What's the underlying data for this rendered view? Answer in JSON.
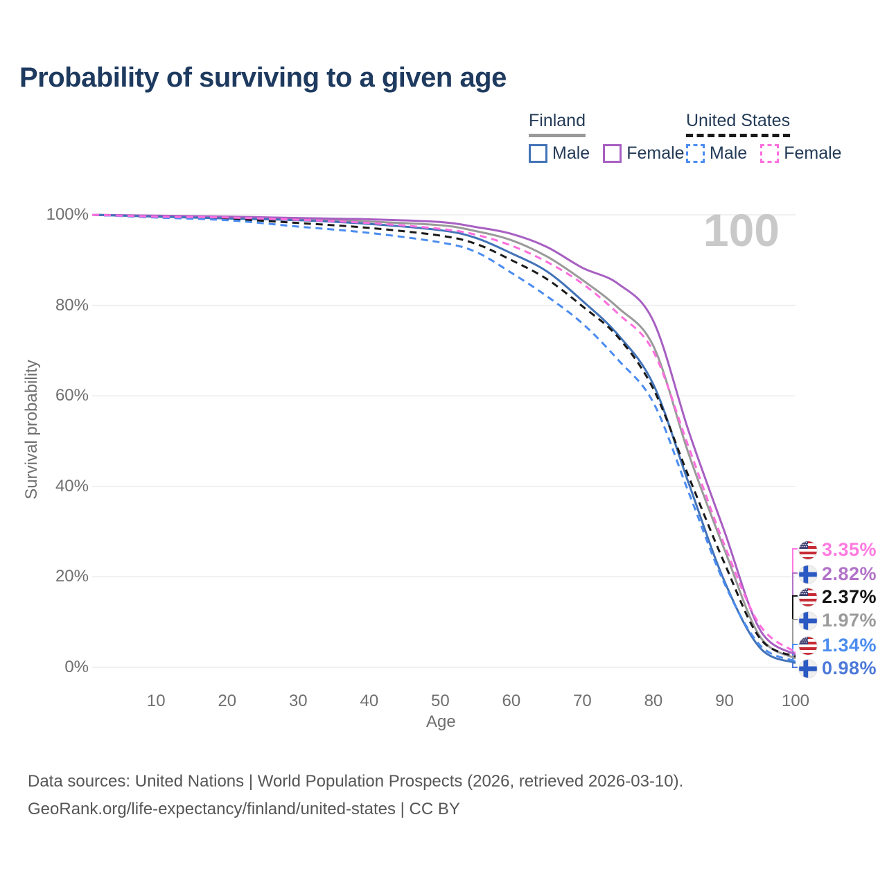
{
  "title": "Probability of surviving to a given age",
  "legend": {
    "finland": {
      "label": "Finland",
      "male": "Male",
      "female": "Female"
    },
    "united_states": {
      "label": "United States",
      "male": "Male",
      "female": "Female"
    }
  },
  "chart_data": {
    "type": "line",
    "title": "Probability of surviving to a given age",
    "xlabel": "Age",
    "ylabel": "Survival probability",
    "xlim": [
      1,
      100
    ],
    "ylim": [
      0,
      100
    ],
    "x_ticks": [
      10,
      20,
      30,
      40,
      50,
      60,
      70,
      80,
      90,
      100
    ],
    "y_tick_pcts": [
      0,
      20,
      40,
      60,
      80,
      100
    ],
    "y_tick_labels": [
      "0%",
      "20%",
      "40%",
      "60%",
      "80%",
      "100%"
    ],
    "grid": "horizontal-only",
    "age_indicator": "100",
    "ages": [
      1,
      10,
      20,
      30,
      40,
      50,
      55,
      60,
      65,
      70,
      75,
      80,
      85,
      90,
      95,
      100
    ],
    "series": [
      {
        "key": "fi_total",
        "name": "Finland (both sexes)",
        "country": "Finland",
        "flag": "fi",
        "color": "#9a9a9a",
        "dash": false,
        "values": [
          100,
          99.7,
          99.4,
          99.1,
          98.5,
          97.7,
          96.4,
          94.4,
          90.8,
          85.6,
          79.5,
          71.0,
          47.0,
          26.0,
          6.8,
          1.97
        ]
      },
      {
        "key": "fi_female",
        "name": "Finland Female",
        "country": "Finland",
        "flag": "fi",
        "color": "#a75fc2",
        "dash": false,
        "values": [
          100,
          99.8,
          99.6,
          99.3,
          99.0,
          98.4,
          97.3,
          95.8,
          92.9,
          88.3,
          84.8,
          76.5,
          52.0,
          30.0,
          8.3,
          2.82
        ]
      },
      {
        "key": "fi_male",
        "name": "Finland Male",
        "country": "Finland",
        "flag": "fi",
        "color": "#4273b8",
        "dash": false,
        "values": [
          100,
          99.6,
          99.2,
          98.8,
          98.0,
          96.6,
          94.9,
          91.5,
          87.5,
          81.0,
          73.5,
          62.5,
          40.5,
          19.0,
          4.3,
          0.98
        ]
      },
      {
        "key": "us_total",
        "name": "United States (both sexes)",
        "country": "United States",
        "flag": "us",
        "color": "#1a1a1a",
        "dash": true,
        "values": [
          100,
          99.5,
          99.1,
          98.2,
          97.1,
          95.4,
          93.6,
          90.0,
          85.8,
          79.8,
          73.0,
          61.5,
          42.0,
          23.0,
          6.4,
          2.37
        ]
      },
      {
        "key": "us_male",
        "name": "United States Male",
        "country": "United States",
        "flag": "us",
        "color": "#4b8cf0",
        "dash": true,
        "values": [
          100,
          99.4,
          98.8,
          97.4,
          96.0,
          93.9,
          91.8,
          87.2,
          82.0,
          76.0,
          68.0,
          58.5,
          38.5,
          18.5,
          4.9,
          1.34
        ]
      },
      {
        "key": "us_female",
        "name": "United States Female",
        "country": "United States",
        "flag": "us",
        "color": "#ff6ede",
        "dash": true,
        "values": [
          100,
          99.6,
          99.4,
          98.9,
          98.2,
          96.9,
          95.6,
          93.2,
          89.6,
          84.8,
          78.2,
          69.8,
          48.5,
          27.0,
          9.3,
          3.35
        ]
      }
    ],
    "end_labels": [
      {
        "series": "us_female",
        "text": "3.35%",
        "color": "#ff7ae0"
      },
      {
        "series": "fi_female",
        "text": "2.82%",
        "color": "#b273c7"
      },
      {
        "series": "us_total",
        "text": "2.37%",
        "color": "#141414"
      },
      {
        "series": "fi_total",
        "text": "1.97%",
        "color": "#9b9b9b"
      },
      {
        "series": "us_male",
        "text": "1.34%",
        "color": "#4a8cf0"
      },
      {
        "series": "fi_male",
        "text": "0.98%",
        "color": "#4d79d9"
      }
    ]
  },
  "footer": {
    "line1": "Data sources: United Nations | World Population Prospects (2026, retrieved 2026-03-10).",
    "line2": "GeoRank.org/life-expectancy/finland/united-states | CC BY"
  }
}
